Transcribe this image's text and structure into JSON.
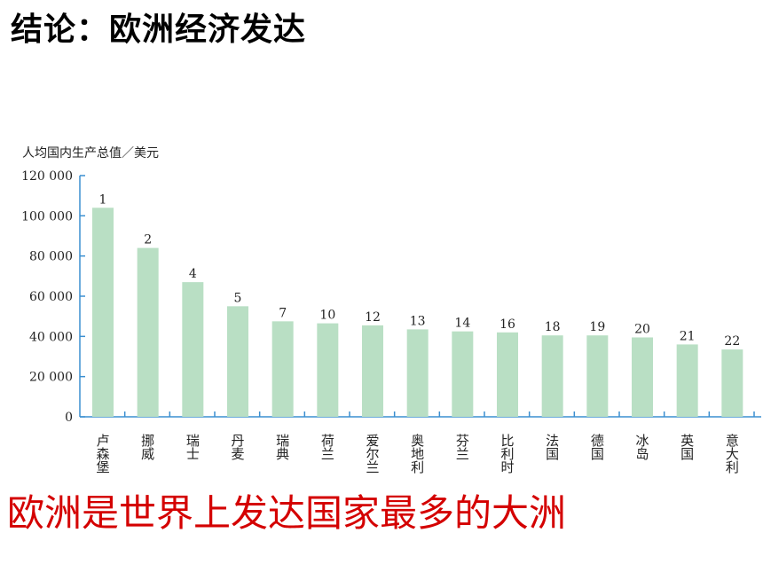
{
  "heading": "结论：欧洲经济发达",
  "conclusion": "欧洲是世界上发达国家最多的大洲",
  "colors": {
    "bar": "#b9dfc4",
    "axis": "#3b8fd0",
    "conclusion": "#d40000"
  },
  "chart_data": {
    "type": "bar",
    "title": "",
    "ylabel": "人均国内生产总值／美元",
    "xlabel": "",
    "ylim": [
      0,
      120000
    ],
    "yticks": [
      "0",
      "20 000",
      "40 000",
      "60 000",
      "80 000",
      "100 000",
      "120 000"
    ],
    "ytick_values": [
      0,
      20000,
      40000,
      60000,
      80000,
      100000,
      120000
    ],
    "categories": [
      "卢森堡",
      "挪威",
      "瑞士",
      "丹麦",
      "瑞典",
      "荷兰",
      "爱尔兰",
      "奥地利",
      "芬兰",
      "比利时",
      "法国",
      "德国",
      "冰岛",
      "英国",
      "意大利"
    ],
    "values": [
      104000,
      84000,
      67000,
      55000,
      47500,
      46500,
      45500,
      43500,
      42500,
      42000,
      40500,
      40500,
      39500,
      36000,
      33500
    ],
    "ranks": [
      "1",
      "2",
      "4",
      "5",
      "7",
      "10",
      "12",
      "13",
      "14",
      "16",
      "18",
      "19",
      "20",
      "21",
      "22"
    ],
    "grid": false,
    "legend": "none"
  }
}
